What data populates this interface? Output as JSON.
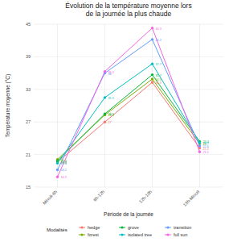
{
  "chart_data": {
    "type": "line",
    "title": "Évolution de la température moyenne lors\nde la journée la plus chaude",
    "x_label": "Période de la journée",
    "y_label": "Température moyenne (°C)",
    "legend_title": "Modalités",
    "categories": [
      "Minuit-6h",
      "6h-12h",
      "12h-18h",
      "18h-Minuit"
    ],
    "series": [
      {
        "name": "hedge",
        "color": "#F8766D",
        "values": [
          19.6,
          27.0,
          34.3,
          22.2
        ]
      },
      {
        "name": "forest",
        "color": "#7CAE00",
        "values": [
          20.1,
          28.3,
          34.9,
          23.0
        ]
      },
      {
        "name": "grove",
        "color": "#00BA38",
        "values": [
          19.8,
          28.5,
          35.7,
          23.4
        ]
      },
      {
        "name": "isolated tree",
        "color": "#00BFC4",
        "values": [
          19.4,
          31.5,
          37.7,
          23.2
        ]
      },
      {
        "name": "transition",
        "color": "#619CFF",
        "values": [
          18.2,
          36.0,
          42.2,
          22.6
        ]
      },
      {
        "name": "full sun",
        "color": "#F564E3",
        "values": [
          16.9,
          36.3,
          44.3,
          21.5
        ]
      }
    ],
    "ylim": [
      15,
      45
    ],
    "yticks": [
      15,
      21,
      27,
      33,
      39,
      45
    ],
    "grid": true,
    "data_labels": true,
    "legend": "bottom",
    "marker": "circle",
    "line_style": "solid"
  }
}
